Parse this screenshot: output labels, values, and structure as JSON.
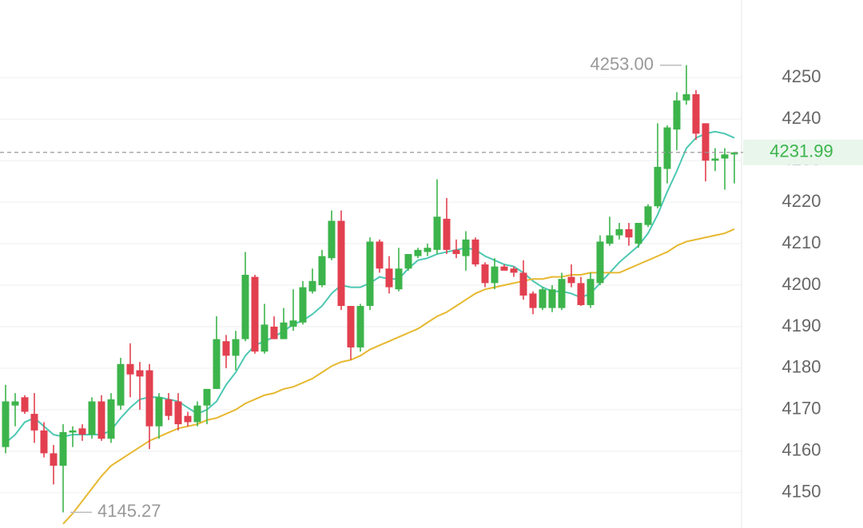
{
  "chart_data": {
    "type": "candlestick",
    "ylim": [
      4141.5,
      4268.7
    ],
    "yticks": [
      4150,
      4160,
      4170,
      4180,
      4190,
      4200,
      4210,
      4220,
      4230,
      4240,
      4250
    ],
    "grid": true,
    "up_color": "#3cb44b",
    "down_color": "#e2404f",
    "open": [
      4161,
      4171,
      4173,
      4169,
      4165,
      4159.5,
      4156.5,
      4164.5,
      4165.5,
      4164,
      4172,
      4163,
      4171,
      4181,
      4179.5,
      4179.5,
      4166,
      4172.5,
      4172,
      4168.5,
      4167,
      4171,
      4175,
      4186.5,
      4183,
      4187,
      4202,
      4184,
      4190,
      4187,
      4190,
      4191,
      4198.5,
      4200,
      4206.5,
      4215.5,
      4195,
      4185,
      4195,
      4210.5,
      4204,
      4199,
      4204,
      4207,
      4208,
      4208.5,
      4216,
      4208.5,
      4207,
      4211,
      4205,
      4200.5,
      4204.5,
      4204,
      4203,
      4198,
      4194.5,
      4194.5,
      4194.5,
      4202,
      4200.5,
      4195.2,
      4200.5,
      4210,
      4212,
      4213.5,
      4210,
      4214.5,
      4219,
      4228,
      4237.5,
      4244.5,
      4246,
      4239,
      4230,
      4230.5,
      4231.5
    ],
    "high": [
      4176,
      4174,
      4173.5,
      4174,
      4167,
      4161.5,
      4166.5,
      4166,
      4166.5,
      4173,
      4173.5,
      4174,
      4182.5,
      4186,
      4181.5,
      4181,
      4174,
      4174,
      4174,
      4169.5,
      4172,
      4175,
      4192.5,
      4188,
      4189,
      4208,
      4202.5,
      4195.5,
      4192.5,
      4194.5,
      4199,
      4201,
      4204,
      4208.5,
      4218,
      4218,
      4195,
      4195.5,
      4211.5,
      4211,
      4207,
      4209,
      4207.5,
      4209,
      4210,
      4225.5,
      4221,
      4211,
      4213,
      4211.5,
      4205.5,
      4206.5,
      4205,
      4204.5,
      4206,
      4198.5,
      4199.5,
      4200,
      4203,
      4205,
      4202,
      4203,
      4212,
      4216.5,
      4215,
      4215,
      4215,
      4219.5,
      4239,
      4238.5,
      4246.5,
      4253,
      4247,
      4239,
      4233,
      4233,
      4232
    ],
    "low": [
      4159.5,
      4166,
      4169,
      4162,
      4158.5,
      4152,
      4145.27,
      4161,
      4162.5,
      4163,
      4162.5,
      4162,
      4170,
      4173,
      4170,
      4160.5,
      4163,
      4167.5,
      4165,
      4166,
      4166,
      4166.5,
      4175,
      4180,
      4179.5,
      4186.5,
      4183.5,
      4183.5,
      4187,
      4187,
      4189,
      4190.5,
      4198,
      4199.5,
      4206,
      4194,
      4182,
      4184,
      4194,
      4203,
      4198,
      4198.5,
      4203.5,
      4206.5,
      4207,
      4207.5,
      4207.5,
      4206.5,
      4203.5,
      4204.5,
      4199.5,
      4199,
      4203.5,
      4202,
      4196.5,
      4193,
      4194,
      4193.5,
      4194,
      4199.5,
      4195,
      4194.5,
      4200,
      4209.5,
      4211,
      4209.5,
      4209,
      4214,
      4218.5,
      4224.5,
      4232.5,
      4243.5,
      4235,
      4225,
      4227.5,
      4223,
      4224.5
    ],
    "close": [
      4172,
      4172,
      4169.5,
      4165,
      4159.5,
      4156.5,
      4164.6,
      4165,
      4164,
      4172,
      4163,
      4172.5,
      4181,
      4178.5,
      4178,
      4166,
      4173,
      4168.5,
      4166.5,
      4167,
      4171,
      4175,
      4187,
      4183,
      4187,
      4202.5,
      4184,
      4190.5,
      4187,
      4191,
      4191.5,
      4199.5,
      4201,
      4207,
      4215.5,
      4195,
      4185,
      4195,
      4210.5,
      4204,
      4199.5,
      4204,
      4207.5,
      4208.5,
      4209,
      4216.5,
      4208.5,
      4207.5,
      4211,
      4205,
      4200.5,
      4204.5,
      4203.5,
      4203,
      4197.5,
      4194.5,
      4199,
      4199,
      4201.5,
      4200.5,
      4195.2,
      4201.5,
      4210.5,
      4212,
      4213.5,
      4211.5,
      4215,
      4219,
      4228.5,
      4238,
      4244.5,
      4246,
      4236.5,
      4230,
      4230.5,
      4231.5,
      4231.99
    ],
    "series": [
      {
        "color": "#4cc8b2",
        "values": [
          4162,
          4164,
          4167,
          4168,
          4166,
          4164,
          4163.5,
          4164,
          4164,
          4164,
          4164,
          4165,
          4168,
          4170.5,
          4172.5,
          4173,
          4173,
          4172.5,
          4172,
          4170.5,
          4169,
          4170,
          4172,
          4176,
          4179,
          4183,
          4185.5,
          4186.5,
          4187.5,
          4189,
          4190.5,
          4191.5,
          4193,
          4195,
          4198,
          4200,
          4199.5,
          4199.5,
          4200.5,
          4202,
          4201.5,
          4201.5,
          4204,
          4206,
          4206.5,
          4207.5,
          4208,
          4208.5,
          4209,
          4208.5,
          4207,
          4206,
          4205,
          4204.5,
          4203,
          4201,
          4199.5,
          4198.5,
          4198.5,
          4198,
          4197,
          4198,
          4200.5,
          4203,
          4205.5,
          4207.5,
          4209.5,
          4212.5,
          4217,
          4222.5,
          4227.5,
          4233,
          4235.5,
          4236.5,
          4237,
          4236.5,
          4235.5
        ]
      },
      {
        "color": "#e6b830",
        "values": [
          null,
          null,
          null,
          null,
          null,
          null,
          4142.5,
          4145,
          4148,
          4151,
          4154,
          4156.5,
          4158,
          4159.5,
          4161,
          4162.5,
          4163.5,
          4164.5,
          4165.5,
          4166,
          4166.5,
          4167.5,
          4168,
          4169,
          4170,
          4171.5,
          4172.5,
          4173.5,
          4174,
          4175,
          4175.5,
          4176.5,
          4177.5,
          4179,
          4180.5,
          4181.5,
          4182,
          4183,
          4184.5,
          4185.5,
          4186.5,
          4187.5,
          4188.5,
          4189.5,
          4191,
          4192.5,
          4193.5,
          4195,
          4196.5,
          4198,
          4199,
          4199.5,
          4200,
          4200.5,
          4201,
          4201.5,
          4201.5,
          4202,
          4202,
          4202.5,
          4202.5,
          4203,
          4203,
          4203,
          4203,
          4204,
          4205,
          4206,
          4207,
          4208,
          4209.5,
          4210.5,
          4211,
          4211.5,
          4212,
          4212.5,
          4213.5
        ]
      }
    ],
    "high_marker": {
      "value": 4253,
      "label": "4253.00"
    },
    "low_marker": 4145.27,
    "last_price": 4231.99
  }
}
